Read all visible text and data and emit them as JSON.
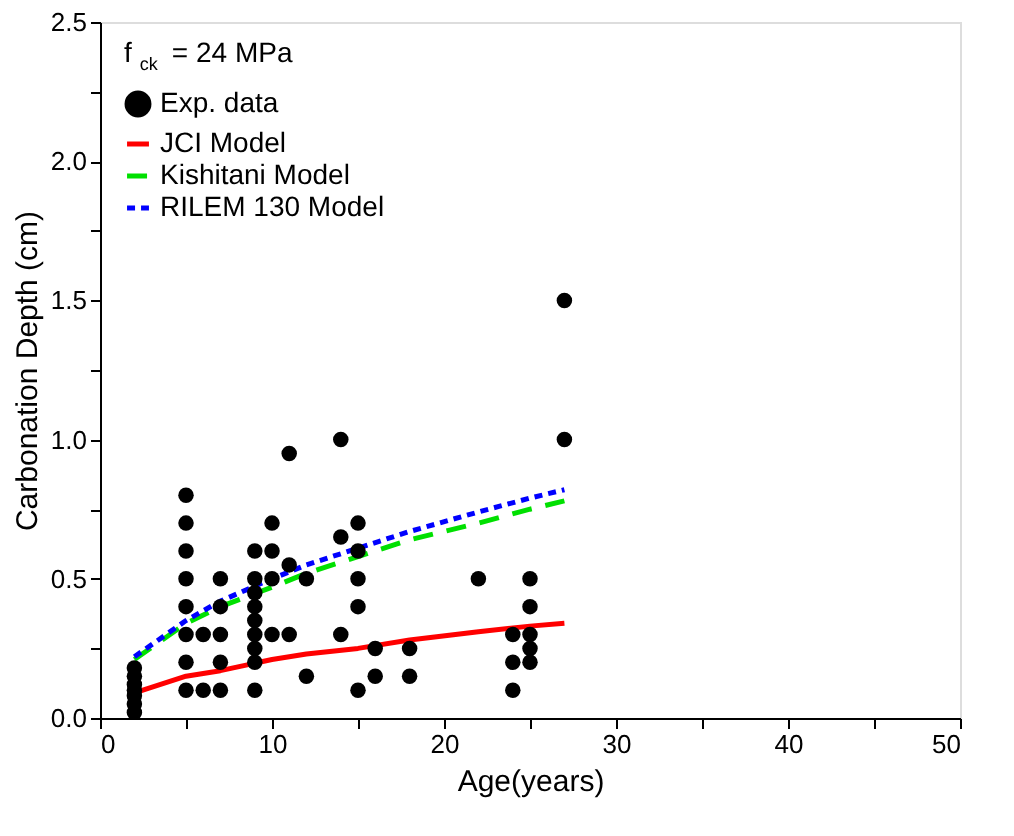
{
  "chart_data": {
    "type": "scatter",
    "xlabel": "Age(years)",
    "ylabel": "Carbonation Depth (cm)",
    "legend_title": "f$_{ck}$ = 24 MPa",
    "xlim": [
      0,
      50
    ],
    "ylim": [
      0,
      2.5
    ],
    "xticks": [
      0,
      {
        "value": 5,
        "label": null
      },
      10,
      {
        "value": 15,
        "label": null
      },
      20,
      {
        "value": 25,
        "label": null
      },
      30,
      {
        "value": 35,
        "label": null
      },
      40,
      {
        "value": 45,
        "label": null
      },
      50
    ],
    "yticks": [
      {
        "value": 0,
        "label": "0.0"
      },
      {
        "value": 0.25,
        "label": null
      },
      0.5,
      {
        "value": 0.75,
        "label": null
      },
      {
        "value": 1,
        "label": "1.0"
      },
      {
        "value": 1.25,
        "label": null
      },
      1.5,
      {
        "value": 1.75,
        "label": null
      },
      {
        "value": 2,
        "label": "2.0"
      },
      {
        "value": 2.25,
        "label": null
      },
      2.5
    ],
    "grid": false,
    "legend": "top left",
    "series": [
      {
        "name": "Exp. data",
        "marker": "circle",
        "color": "#000000",
        "x": [
          2,
          2,
          2,
          2,
          2,
          2,
          2,
          5,
          5,
          5,
          5,
          5,
          5,
          5,
          5,
          6,
          6,
          7,
          7,
          7,
          7,
          7,
          9,
          9,
          9,
          9,
          9,
          9,
          9,
          9,
          9,
          10,
          10,
          10,
          10,
          11,
          11,
          11,
          12,
          12,
          14,
          14,
          14,
          15,
          15,
          15,
          15,
          15,
          16,
          16,
          18,
          18,
          22,
          24,
          24,
          24,
          25,
          25,
          25,
          25,
          25,
          27,
          27
        ],
        "values": [
          0.02,
          0.05,
          0.08,
          0.1,
          0.12,
          0.15,
          0.18,
          0.1,
          0.2,
          0.3,
          0.4,
          0.5,
          0.6,
          0.7,
          0.8,
          0.1,
          0.3,
          0.1,
          0.2,
          0.3,
          0.4,
          0.5,
          0.1,
          0.2,
          0.25,
          0.3,
          0.35,
          0.4,
          0.45,
          0.5,
          0.6,
          0.3,
          0.5,
          0.6,
          0.7,
          0.3,
          0.55,
          0.95,
          0.15,
          0.5,
          0.3,
          0.65,
          1.0,
          0.1,
          0.4,
          0.5,
          0.6,
          0.7,
          0.15,
          0.25,
          0.15,
          0.25,
          0.5,
          0.1,
          0.2,
          0.3,
          0.2,
          0.25,
          0.3,
          0.4,
          0.5,
          1.0,
          1.5
        ]
      },
      {
        "name": "JCI Model",
        "type": "line",
        "line_style": "solid",
        "color": "#ff0000",
        "x": [
          2,
          5,
          7,
          10,
          12,
          15,
          18,
          22,
          25,
          27
        ],
        "values": [
          0.09,
          0.15,
          0.17,
          0.21,
          0.23,
          0.25,
          0.28,
          0.31,
          0.33,
          0.34
        ]
      },
      {
        "name": "Kishitani Model",
        "type": "line",
        "line_style": "dashed",
        "color": "#00e000",
        "x": [
          2,
          5,
          7,
          10,
          12,
          15,
          18,
          22,
          25,
          27
        ],
        "values": [
          0.21,
          0.34,
          0.4,
          0.47,
          0.52,
          0.58,
          0.64,
          0.7,
          0.75,
          0.78
        ]
      },
      {
        "name": "RILEM 130 Model",
        "type": "line",
        "line_style": "dotted",
        "color": "#0000ff",
        "x": [
          2,
          5,
          7,
          10,
          12,
          15,
          18,
          22,
          25,
          27
        ],
        "values": [
          0.22,
          0.35,
          0.42,
          0.5,
          0.55,
          0.61,
          0.67,
          0.74,
          0.79,
          0.82
        ]
      }
    ]
  }
}
